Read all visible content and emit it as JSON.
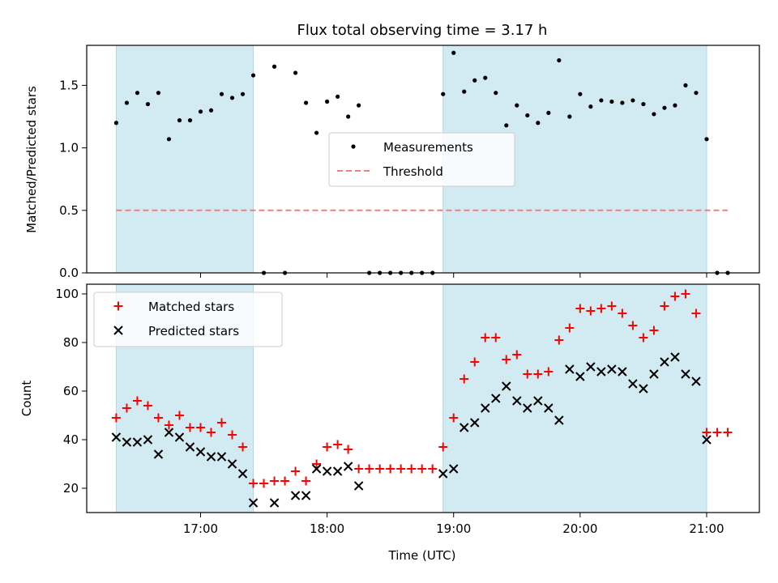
{
  "chart_data": {
    "type": "scatter",
    "title": "Flux total observing time = 3.17 h",
    "shared_x": {
      "xlabel": "Time (UTC)",
      "xlim": [
        "16:06",
        "21:25"
      ],
      "ticks": [
        "17:00",
        "18:00",
        "19:00",
        "20:00",
        "21:00"
      ]
    },
    "shaded_intervals": [
      {
        "start": "16:20",
        "end": "17:25"
      },
      {
        "start": "18:55",
        "end": "21:00"
      }
    ],
    "shade_color": "#add8e6",
    "panels": [
      {
        "ylabel": "Matched/Predicted stars",
        "ylim": [
          0,
          1.82
        ],
        "yticks": [
          "0.0",
          "0.5",
          "1.0",
          "1.5"
        ],
        "legend": {
          "placement": "center",
          "entries": [
            "Measurements",
            "Threshold"
          ]
        },
        "series": [
          {
            "name": "Measurements",
            "style": "dot",
            "color": "#000000",
            "x": [
              "16:20",
              "16:25",
              "16:30",
              "16:35",
              "16:40",
              "16:45",
              "16:50",
              "16:55",
              "17:00",
              "17:05",
              "17:10",
              "17:15",
              "17:20",
              "17:25",
              "17:30",
              "17:35",
              "17:40",
              "17:45",
              "17:50",
              "17:55",
              "18:00",
              "18:05",
              "18:10",
              "18:15",
              "18:20",
              "18:25",
              "18:30",
              "18:35",
              "18:40",
              "18:45",
              "18:50",
              "18:55",
              "19:00",
              "19:05",
              "19:10",
              "19:15",
              "19:20",
              "19:25",
              "19:30",
              "19:35",
              "19:40",
              "19:45",
              "19:50",
              "19:55",
              "20:00",
              "20:05",
              "20:10",
              "20:15",
              "20:20",
              "20:25",
              "20:30",
              "20:35",
              "20:40",
              "20:45",
              "20:50",
              "20:55",
              "21:00",
              "21:05",
              "21:10"
            ],
            "values": [
              1.2,
              1.36,
              1.44,
              1.35,
              1.44,
              1.07,
              1.22,
              1.22,
              1.29,
              1.3,
              1.43,
              1.4,
              1.43,
              1.58,
              0.0,
              1.65,
              0.0,
              1.6,
              1.36,
              1.12,
              1.37,
              1.41,
              1.25,
              1.34,
              0.0,
              0.0,
              0.0,
              0.0,
              0.0,
              0.0,
              0.0,
              1.43,
              1.76,
              1.45,
              1.54,
              1.56,
              1.44,
              1.18,
              1.34,
              1.26,
              1.2,
              1.28,
              1.7,
              1.25,
              1.43,
              1.33,
              1.38,
              1.37,
              1.36,
              1.38,
              1.35,
              1.27,
              1.32,
              1.34,
              1.5,
              1.44,
              1.07,
              0.0,
              0.0
            ]
          },
          {
            "name": "Threshold",
            "style": "dashed-line",
            "color": "#f08080",
            "x": [
              "16:20",
              "21:10"
            ],
            "values": [
              0.5,
              0.5
            ]
          }
        ]
      },
      {
        "ylabel": "Count",
        "ylim": [
          10,
          104
        ],
        "yticks": [
          "20",
          "40",
          "60",
          "80",
          "100"
        ],
        "legend": {
          "placement": "upper-left",
          "entries": [
            "Matched stars",
            "Predicted stars"
          ]
        },
        "series": [
          {
            "name": "Matched stars",
            "style": "plus",
            "color": "#ff0000",
            "x": [
              "16:20",
              "16:25",
              "16:30",
              "16:35",
              "16:40",
              "16:45",
              "16:50",
              "16:55",
              "17:00",
              "17:05",
              "17:10",
              "17:15",
              "17:20",
              "17:25",
              "17:30",
              "17:35",
              "17:40",
              "17:45",
              "17:50",
              "17:55",
              "18:00",
              "18:05",
              "18:10",
              "18:15",
              "18:20",
              "18:25",
              "18:30",
              "18:35",
              "18:40",
              "18:45",
              "18:50",
              "18:55",
              "19:00",
              "19:05",
              "19:10",
              "19:15",
              "19:20",
              "19:25",
              "19:30",
              "19:35",
              "19:40",
              "19:45",
              "19:50",
              "19:55",
              "20:00",
              "20:05",
              "20:10",
              "20:15",
              "20:20",
              "20:25",
              "20:30",
              "20:35",
              "20:40",
              "20:45",
              "20:50",
              "20:55",
              "21:00",
              "21:05",
              "21:10"
            ],
            "values": [
              49,
              53,
              56,
              54,
              49,
              46,
              50,
              45,
              45,
              43,
              47,
              42,
              37,
              22,
              22,
              23,
              23,
              27,
              23,
              30,
              37,
              38,
              36,
              28,
              28,
              28,
              28,
              28,
              28,
              28,
              28,
              37,
              49,
              65,
              72,
              82,
              82,
              73,
              75,
              67,
              67,
              68,
              81,
              86,
              94,
              93,
              94,
              95,
              92,
              87,
              82,
              85,
              95,
              99,
              100,
              92,
              43,
              43,
              43
            ]
          },
          {
            "name": "Predicted stars",
            "style": "x",
            "color": "#000000",
            "x": [
              "16:20",
              "16:25",
              "16:30",
              "16:35",
              "16:40",
              "16:45",
              "16:50",
              "16:55",
              "17:00",
              "17:05",
              "17:10",
              "17:15",
              "17:20",
              "17:25",
              "17:35",
              "17:45",
              "17:50",
              "17:55",
              "18:00",
              "18:05",
              "18:10",
              "18:15",
              "18:55",
              "19:00",
              "19:05",
              "19:10",
              "19:15",
              "19:20",
              "19:25",
              "19:30",
              "19:35",
              "19:40",
              "19:45",
              "19:50",
              "19:55",
              "20:00",
              "20:05",
              "20:10",
              "20:15",
              "20:20",
              "20:25",
              "20:30",
              "20:35",
              "20:40",
              "20:45",
              "20:50",
              "20:55",
              "21:00"
            ],
            "values": [
              41,
              39,
              39,
              40,
              34,
              43,
              41,
              37,
              35,
              33,
              33,
              30,
              26,
              14,
              14,
              17,
              17,
              28,
              27,
              27,
              29,
              21,
              26,
              28,
              45,
              47,
              53,
              57,
              62,
              56,
              53,
              56,
              53,
              48,
              69,
              66,
              70,
              68,
              69,
              68,
              63,
              61,
              67,
              72,
              74,
              67,
              64,
              40
            ]
          }
        ]
      }
    ]
  }
}
